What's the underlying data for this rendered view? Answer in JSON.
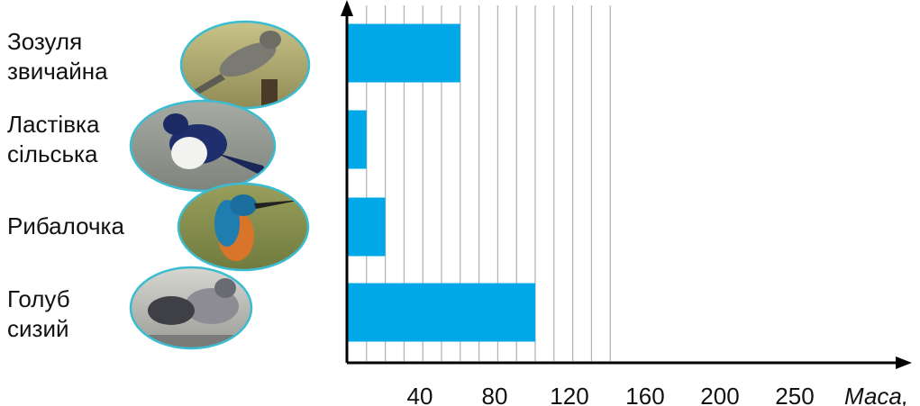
{
  "chart_data": {
    "type": "bar",
    "orientation": "horizontal",
    "categories": [
      [
        "Зозуля",
        "звичайна"
      ],
      [
        "Ластівка",
        "сільська"
      ],
      [
        "Рибалочка"
      ],
      [
        "Голуб",
        "сизий"
      ]
    ],
    "values": [
      120,
      20,
      40,
      200
    ],
    "tick_labels": [
      "40",
      "80",
      "120",
      "160",
      "200",
      "250"
    ],
    "xlabel": "Маса,",
    "ylabel": "",
    "xlim": [
      0,
      280
    ],
    "grid": true,
    "colors": {
      "bar": "#00a8e8",
      "grid": "#b0b0b0",
      "axis": "#000000"
    },
    "bird_images": [
      "cuckoo",
      "swallow",
      "kingfisher",
      "pigeon"
    ]
  }
}
